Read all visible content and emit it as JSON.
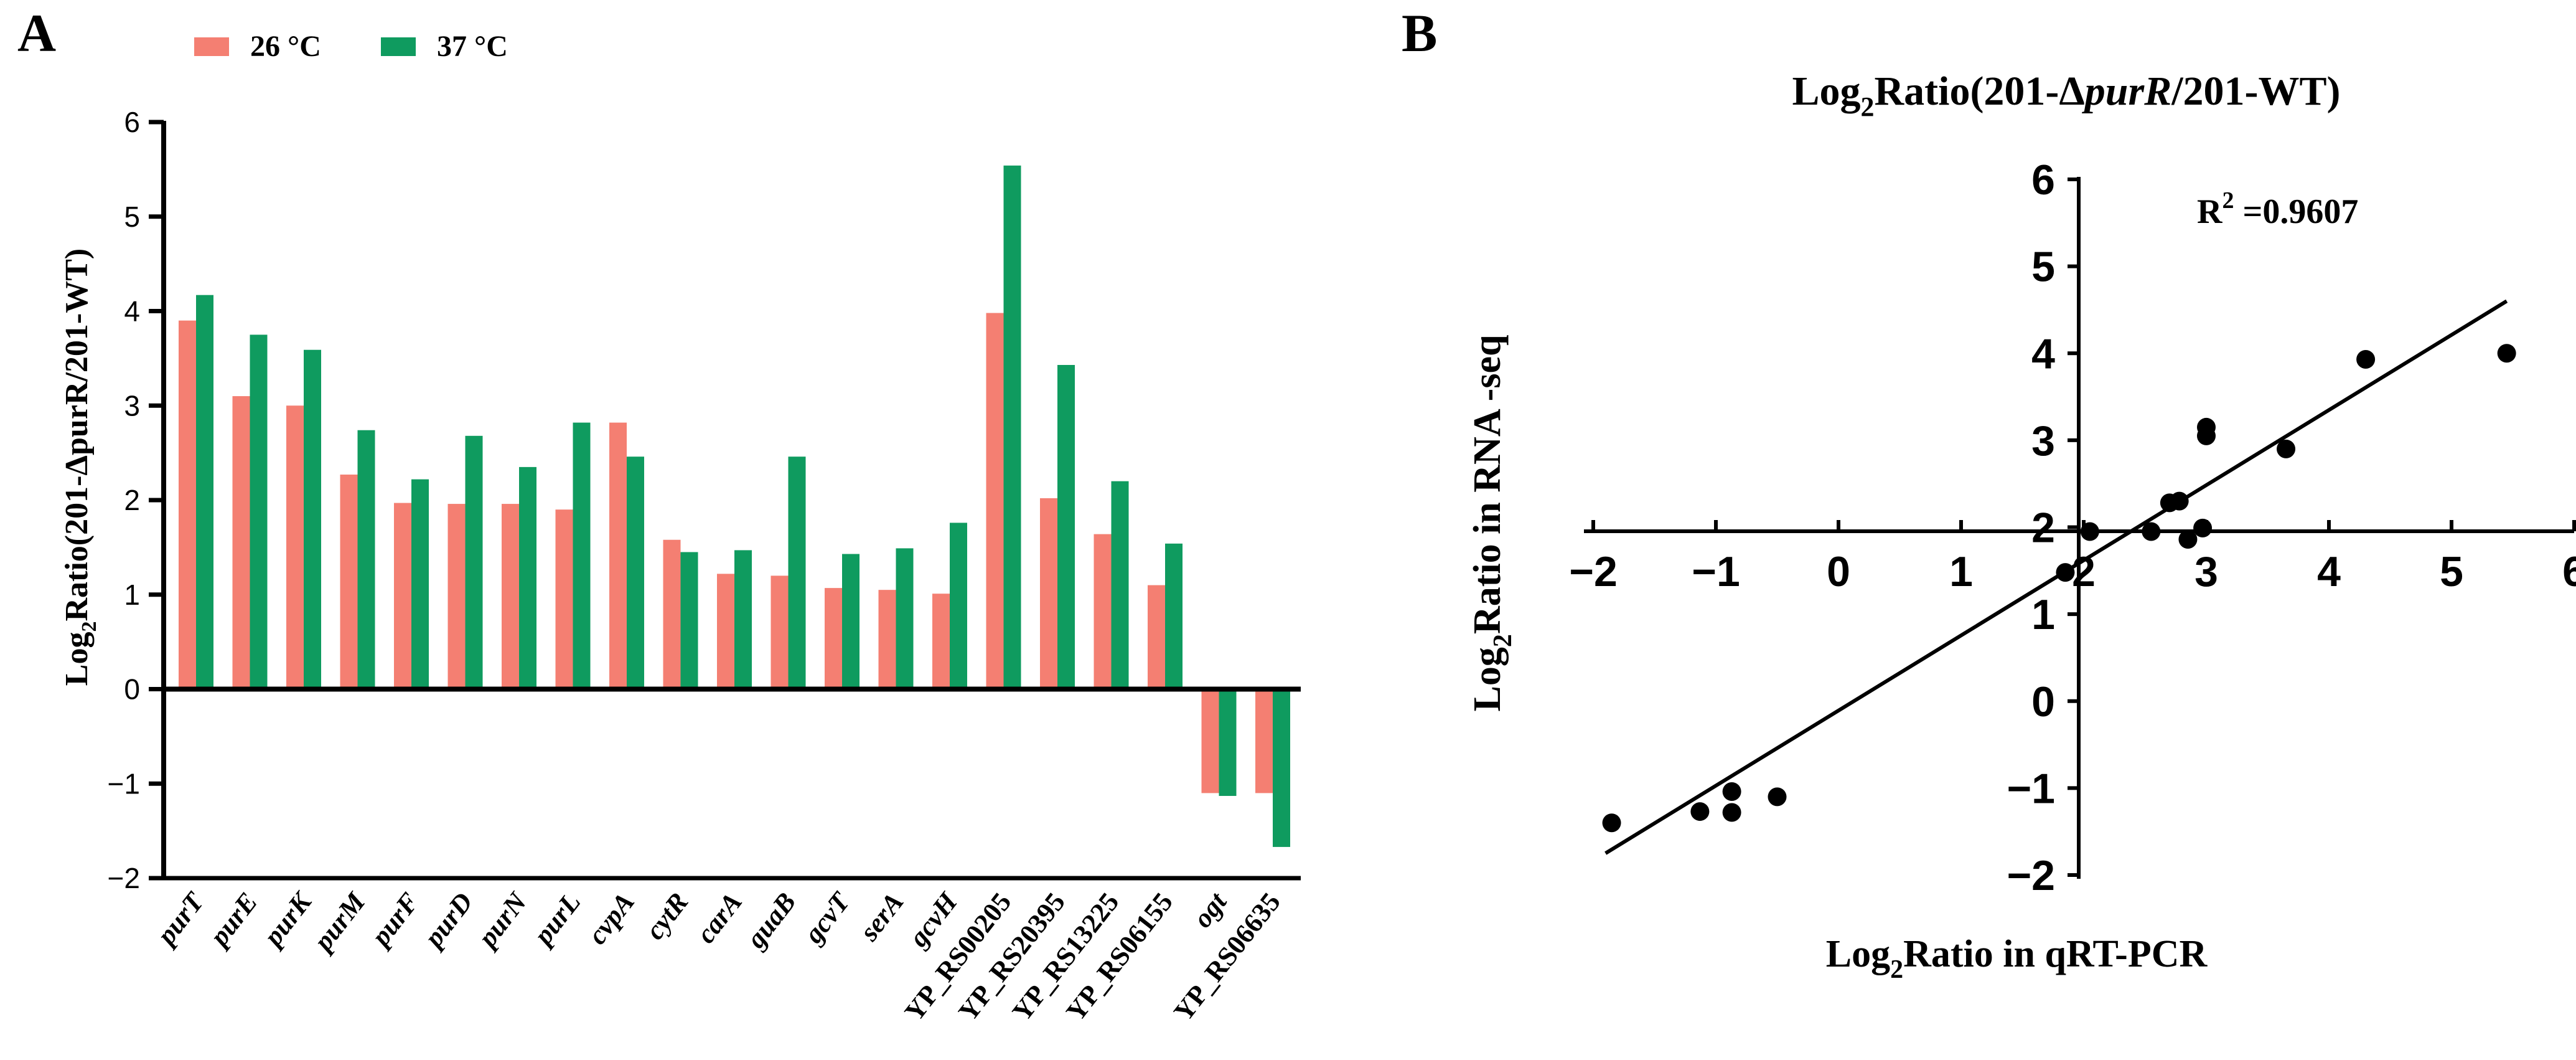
{
  "panel_a_label": "A",
  "panel_b_label": "B",
  "colors": {
    "series_26": "#f47f72",
    "series_37": "#0f9b5f",
    "axis": "#000000"
  },
  "chart_data": [
    {
      "type": "bar",
      "panel": "A",
      "title": "",
      "xlabel": "",
      "ylabel_parts": [
        "Log",
        "2",
        "Ratio(201-ΔpurR/201-WT)"
      ],
      "ylim": [
        -2,
        6
      ],
      "yticks": [
        6,
        5,
        4,
        3,
        2,
        1,
        0,
        -1,
        -2
      ],
      "ytick_labels": [
        "6",
        "5",
        "4",
        "3",
        "2",
        "1",
        "0",
        "−1",
        "−2"
      ],
      "legend": [
        "26 °C",
        "37 °C"
      ],
      "legend_position": "top-left",
      "categories": [
        "purT",
        "purE",
        "purK",
        "purM",
        "purF",
        "purD",
        "purN",
        "purL",
        "cvpA",
        "cytR",
        "carA",
        "guaB",
        "gcvT",
        "serA",
        "gcvH",
        "YP_RS00205",
        "YP_RS20395",
        "YP_RS13225",
        "YP_RS06155",
        "ogt",
        "YP_RS06635"
      ],
      "series": [
        {
          "name": "26 °C",
          "values": [
            3.9,
            3.1,
            3.0,
            2.27,
            1.97,
            1.96,
            1.96,
            1.9,
            2.82,
            1.58,
            1.22,
            1.2,
            1.07,
            1.05,
            1.01,
            3.98,
            2.02,
            1.64,
            1.1,
            -1.1,
            -1.1
          ]
        },
        {
          "name": "37 °C",
          "values": [
            4.17,
            3.75,
            3.59,
            2.74,
            2.22,
            2.68,
            2.35,
            2.82,
            2.46,
            1.45,
            1.47,
            2.46,
            1.43,
            1.49,
            1.76,
            5.54,
            3.43,
            2.2,
            1.54,
            -1.13,
            -1.67
          ]
        }
      ]
    },
    {
      "type": "scatter",
      "panel": "B",
      "title_parts": [
        "Log",
        "2",
        "Ratio(201-Δ",
        "purR",
        "/201-WT)"
      ],
      "xlabel_parts": [
        "Log",
        "2",
        "Ratio in qRT-PCR"
      ],
      "ylabel_parts": [
        "Log",
        "2",
        "Ratio in RNA -seq"
      ],
      "xlim": [
        -2,
        6
      ],
      "ylim": [
        -2,
        6
      ],
      "xticks": [
        -2,
        -1,
        0,
        1,
        2,
        3,
        4,
        5,
        6
      ],
      "xtick_labels": [
        "−2",
        "−1",
        "0",
        "1",
        "2",
        "3",
        "4",
        "5",
        "6"
      ],
      "yticks": [
        6,
        5,
        4,
        3,
        2,
        1,
        0,
        -1,
        -2
      ],
      "ytick_labels": [
        "6",
        "5",
        "4",
        "3",
        "2",
        "1",
        "0",
        "−1",
        "−2"
      ],
      "annotation_parts": [
        "R",
        "2",
        " =0.9607"
      ],
      "r_squared": 0.9607,
      "points": [
        {
          "x": -1.85,
          "y": -1.4
        },
        {
          "x": -1.13,
          "y": -1.27
        },
        {
          "x": -0.87,
          "y": -1.28
        },
        {
          "x": -0.87,
          "y": -1.04
        },
        {
          "x": -0.5,
          "y": -1.1
        },
        {
          "x": 1.85,
          "y": 1.48
        },
        {
          "x": 2.05,
          "y": 1.95
        },
        {
          "x": 2.55,
          "y": 1.95
        },
        {
          "x": 2.7,
          "y": 2.28
        },
        {
          "x": 2.78,
          "y": 2.3
        },
        {
          "x": 2.85,
          "y": 1.86
        },
        {
          "x": 2.97,
          "y": 1.99
        },
        {
          "x": 3.0,
          "y": 3.05
        },
        {
          "x": 3.0,
          "y": 3.15
        },
        {
          "x": 3.65,
          "y": 2.9
        },
        {
          "x": 4.3,
          "y": 3.93
        },
        {
          "x": 5.45,
          "y": 4.0
        }
      ],
      "regression": {
        "x": [
          -1.9,
          5.45
        ],
        "y": [
          -1.75,
          4.6
        ]
      }
    }
  ]
}
